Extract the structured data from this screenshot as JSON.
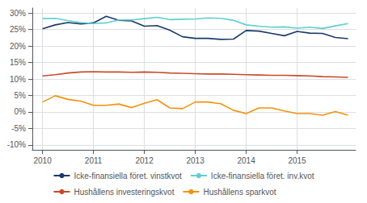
{
  "chart_data": {
    "type": "line",
    "x": [
      2010.0,
      2010.25,
      2010.5,
      2010.75,
      2011.0,
      2011.25,
      2011.5,
      2011.75,
      2012.0,
      2012.25,
      2012.5,
      2012.75,
      2013.0,
      2013.25,
      2013.5,
      2013.75,
      2014.0,
      2014.25,
      2014.5,
      2014.75,
      2015.0,
      2015.25,
      2015.5,
      2015.75,
      2016.0
    ],
    "series": [
      {
        "name": "Icke-finansiella föret. vinstkvot",
        "color": "#1a3a6b",
        "values": [
          0.252,
          0.264,
          0.271,
          0.267,
          0.27,
          0.29,
          0.278,
          0.276,
          0.26,
          0.262,
          0.248,
          0.228,
          0.223,
          0.223,
          0.22,
          0.221,
          0.247,
          0.245,
          0.238,
          0.231,
          0.244,
          0.239,
          0.238,
          0.226,
          0.222
        ]
      },
      {
        "name": "Icke-finansiella föret. inv.kvot",
        "color": "#5ecfcf",
        "values": [
          0.283,
          0.284,
          0.277,
          0.271,
          0.268,
          0.27,
          0.279,
          0.279,
          0.283,
          0.287,
          0.28,
          0.281,
          0.282,
          0.285,
          0.284,
          0.278,
          0.264,
          0.26,
          0.257,
          0.258,
          0.254,
          0.257,
          0.253,
          0.261,
          0.268
        ]
      },
      {
        "name": "Hushållens investeringskvot",
        "color": "#c94a2b",
        "values": [
          0.109,
          0.113,
          0.118,
          0.121,
          0.122,
          0.121,
          0.121,
          0.12,
          0.121,
          0.12,
          0.118,
          0.117,
          0.116,
          0.115,
          0.115,
          0.114,
          0.113,
          0.112,
          0.111,
          0.111,
          0.11,
          0.109,
          0.107,
          0.106,
          0.105
        ]
      },
      {
        "name": "Hushållens sparkvot",
        "color": "#f5920a",
        "values": [
          0.03,
          0.049,
          0.038,
          0.033,
          0.02,
          0.02,
          0.024,
          0.013,
          0.026,
          0.037,
          0.012,
          0.01,
          0.03,
          0.03,
          0.025,
          0.005,
          -0.005,
          0.012,
          0.012,
          0.003,
          -0.005,
          -0.005,
          -0.01,
          0.001,
          -0.01
        ]
      }
    ],
    "xlim": [
      2009.8,
      2016.15
    ],
    "xticks": [
      2010,
      2011,
      2012,
      2013,
      2014,
      2015
    ],
    "ylim": [
      -0.115,
      0.315
    ],
    "yticks": [
      {
        "value": -0.1,
        "label": "-10%"
      },
      {
        "value": -0.05,
        "label": "-5%"
      },
      {
        "value": 0.0,
        "label": "0%"
      },
      {
        "value": 0.05,
        "label": "5%"
      },
      {
        "value": 0.1,
        "label": "10%"
      },
      {
        "value": 0.15,
        "label": "15%"
      },
      {
        "value": 0.2,
        "label": "20%"
      },
      {
        "value": 0.25,
        "label": "25%"
      },
      {
        "value": 0.3,
        "label": "30%"
      }
    ],
    "grid": true,
    "legend": "bottom"
  }
}
